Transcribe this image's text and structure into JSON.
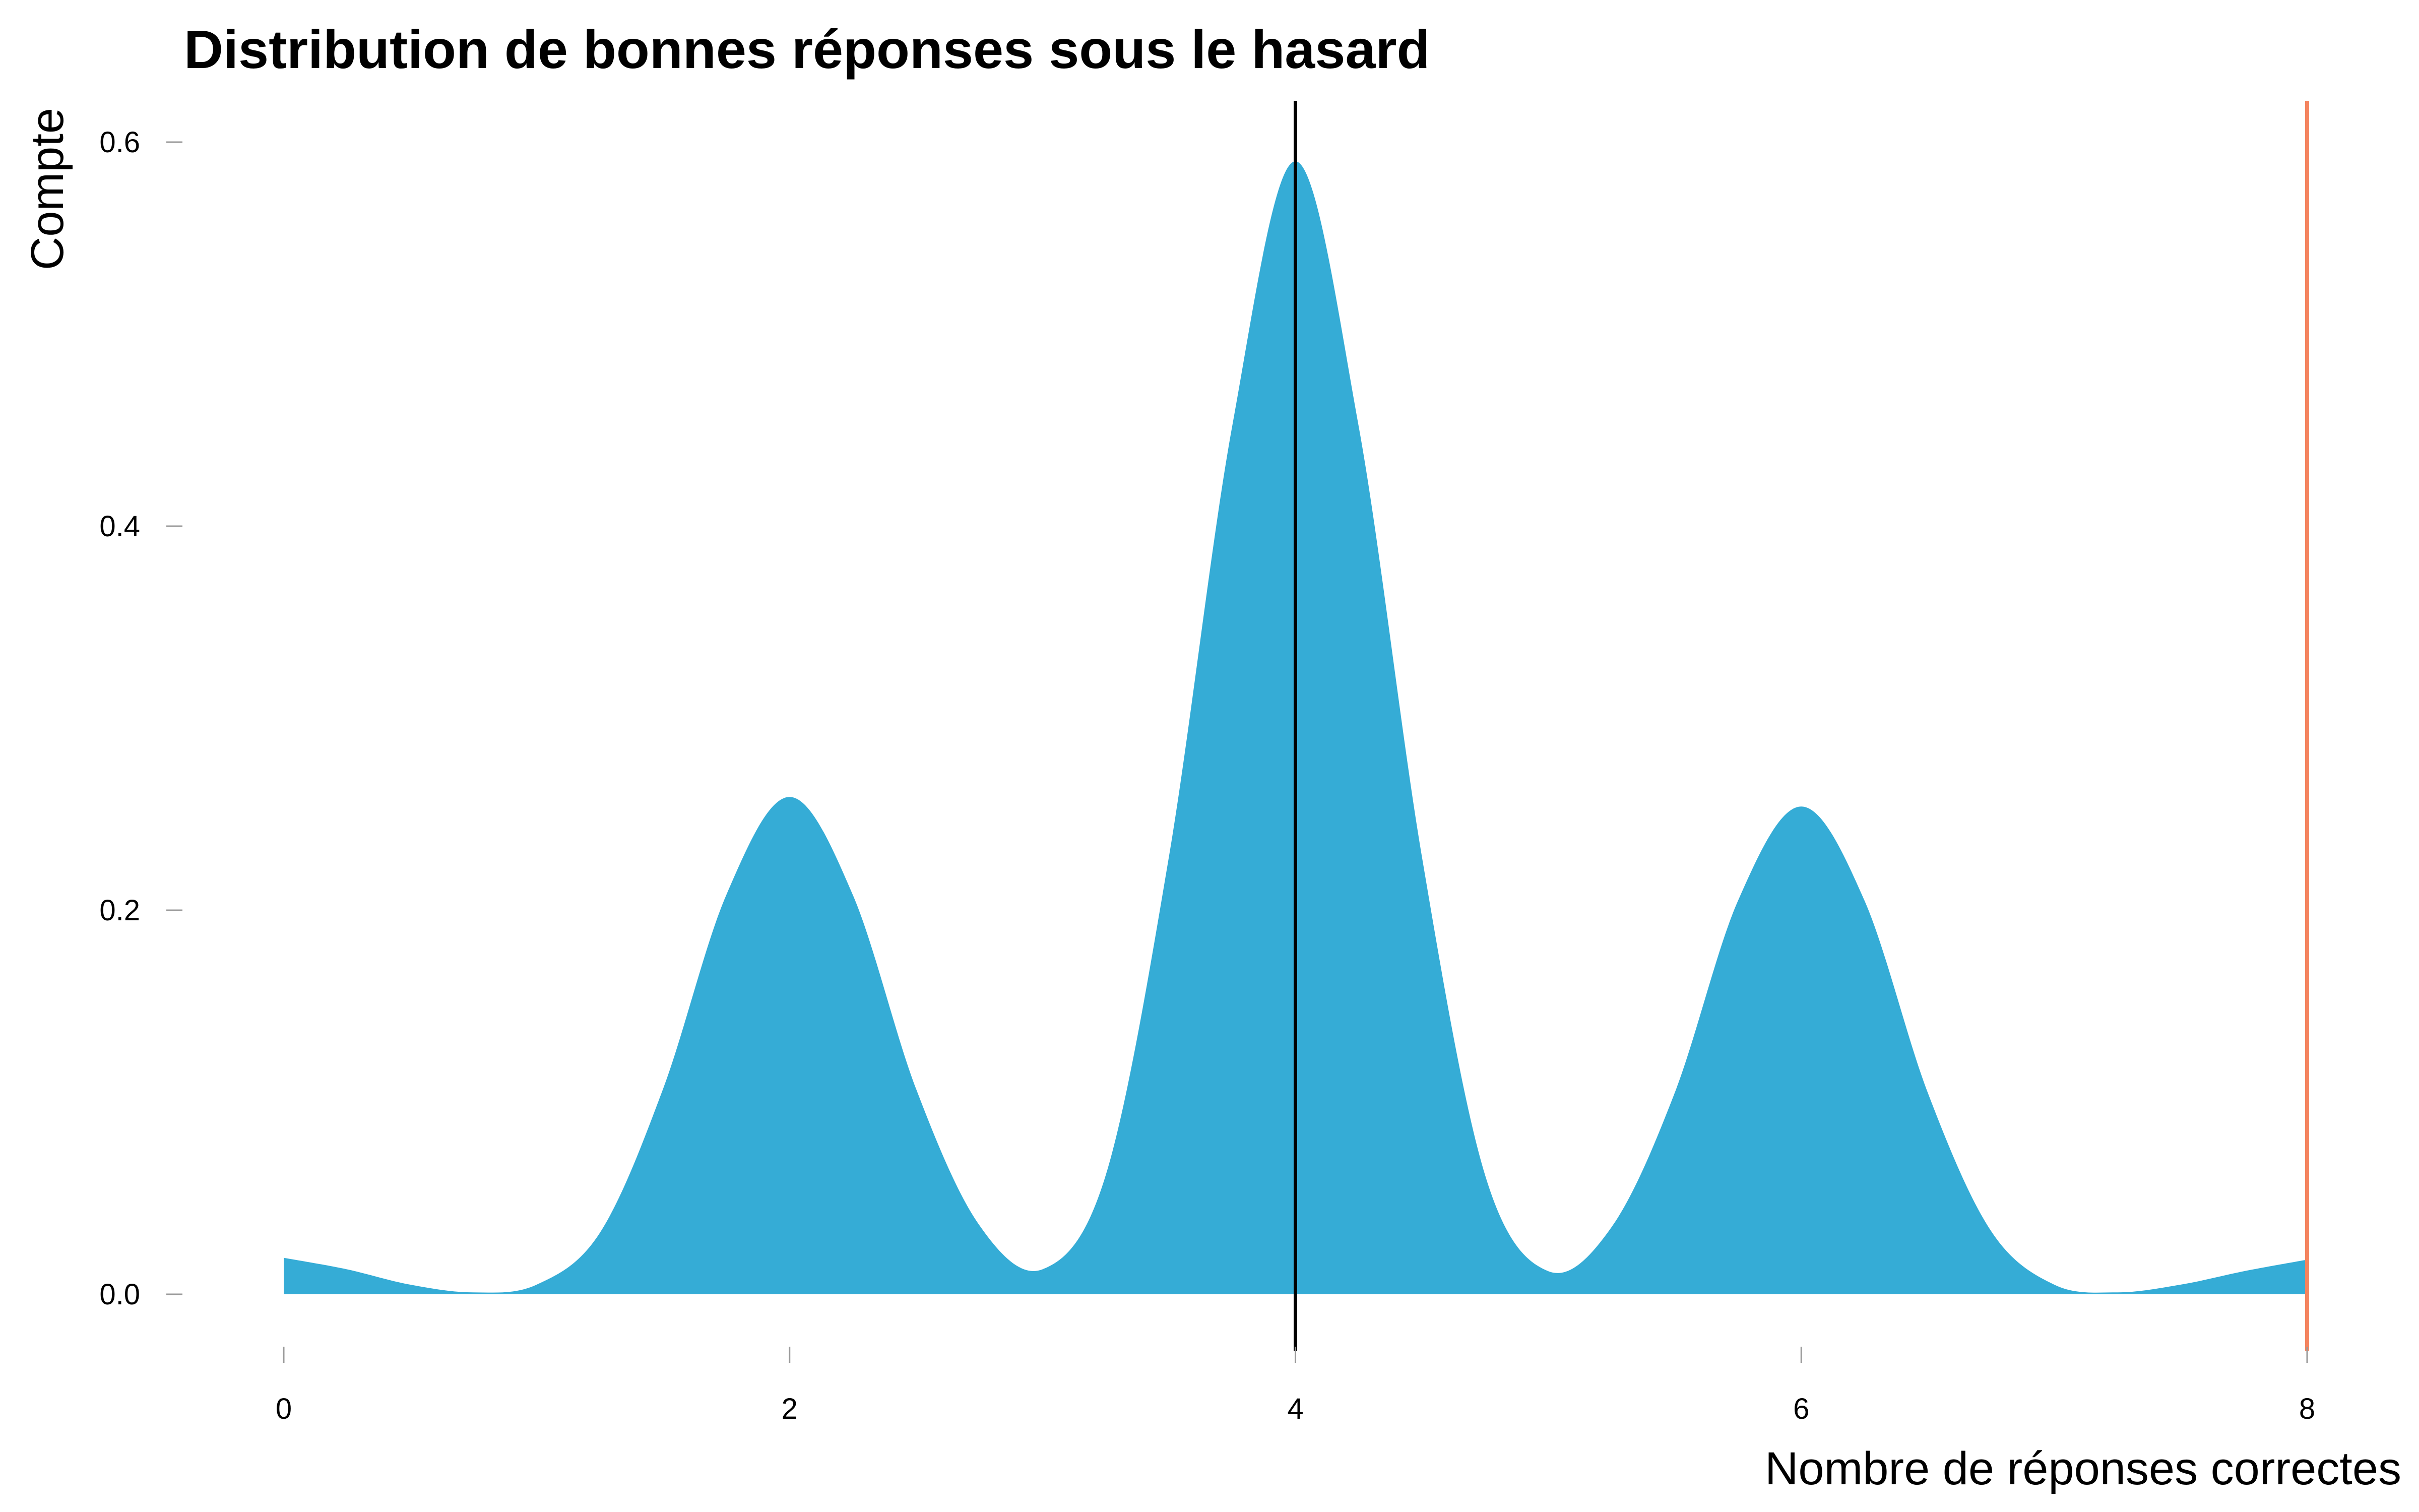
{
  "chart_data": {
    "type": "area",
    "title": "Distribution de bonnes réponses sous le hasard",
    "xlabel": "Nombre de réponses correctes",
    "ylabel": "Compte",
    "xlim": [
      0,
      8
    ],
    "ylim": [
      0,
      0.6
    ],
    "x_ticks": [
      0,
      2,
      4,
      6,
      8
    ],
    "y_ticks": [
      0.0,
      0.2,
      0.4,
      0.6
    ],
    "x_tick_labels": [
      "0",
      "2",
      "4",
      "6",
      "8"
    ],
    "y_tick_labels": [
      "0.0",
      "0.2",
      "0.4",
      "0.6"
    ],
    "grid": false,
    "fill_color": "#35acd6",
    "series": [
      {
        "x": [
          0,
          0.25,
          0.5,
          0.75,
          1,
          1.25,
          1.5,
          1.75,
          2,
          2.25,
          2.5,
          2.75,
          3,
          3.25,
          3.5,
          3.75,
          4,
          4.25,
          4.5,
          4.75,
          5,
          5.25,
          5.5,
          5.75,
          6,
          6.25,
          6.5,
          6.75,
          7,
          7.25,
          7.5,
          7.75,
          8
        ],
        "y": [
          0.019,
          0.013,
          0.005,
          0.001,
          0.005,
          0.032,
          0.107,
          0.208,
          0.259,
          0.208,
          0.107,
          0.036,
          0.013,
          0.062,
          0.228,
          0.452,
          0.59,
          0.452,
          0.228,
          0.062,
          0.012,
          0.035,
          0.105,
          0.205,
          0.254,
          0.205,
          0.105,
          0.033,
          0.005,
          0.001,
          0.005,
          0.012,
          0.018
        ]
      }
    ],
    "vlines": [
      {
        "x": 4,
        "color": "#000000"
      },
      {
        "x": 8,
        "color": "#f4845f"
      }
    ]
  }
}
